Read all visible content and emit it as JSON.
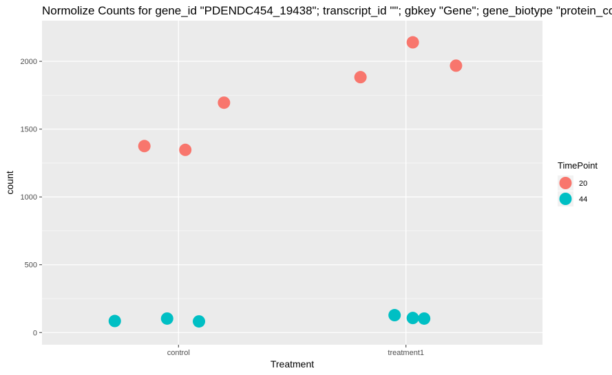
{
  "chart_data": {
    "type": "scatter",
    "title": "Normolize Counts for gene_id \"PDENDC454_19438\"; transcript_id \"\"; gbkey \"Gene\"; gene_biotype \"protein_coding\"",
    "xlabel": "Treatment",
    "ylabel": "count",
    "categories": [
      "control",
      "treatment1"
    ],
    "yticks": [
      0,
      500,
      1000,
      1500,
      2000
    ],
    "ylim": [
      -90,
      2300
    ],
    "grid": true,
    "legend": {
      "title": "TimePoint",
      "position": "right",
      "entries": [
        {
          "label": "20",
          "color": "#F8766D"
        },
        {
          "label": "44",
          "color": "#00BFC4"
        }
      ]
    },
    "series": [
      {
        "name": "20",
        "color": "#F8766D",
        "points": [
          {
            "category": "control",
            "jitter": -0.15,
            "y": 1375
          },
          {
            "category": "control",
            "jitter": 0.03,
            "y": 1347
          },
          {
            "category": "control",
            "jitter": 0.2,
            "y": 1695
          },
          {
            "category": "treatment1",
            "jitter": -0.2,
            "y": 1883
          },
          {
            "category": "treatment1",
            "jitter": 0.03,
            "y": 2140
          },
          {
            "category": "treatment1",
            "jitter": 0.22,
            "y": 1968
          }
        ]
      },
      {
        "name": "44",
        "color": "#00BFC4",
        "points": [
          {
            "category": "control",
            "jitter": -0.28,
            "y": 85
          },
          {
            "category": "control",
            "jitter": -0.05,
            "y": 103
          },
          {
            "category": "control",
            "jitter": 0.09,
            "y": 82
          },
          {
            "category": "treatment1",
            "jitter": -0.05,
            "y": 128
          },
          {
            "category": "treatment1",
            "jitter": 0.03,
            "y": 107
          },
          {
            "category": "treatment1",
            "jitter": 0.08,
            "y": 103
          }
        ]
      }
    ]
  }
}
